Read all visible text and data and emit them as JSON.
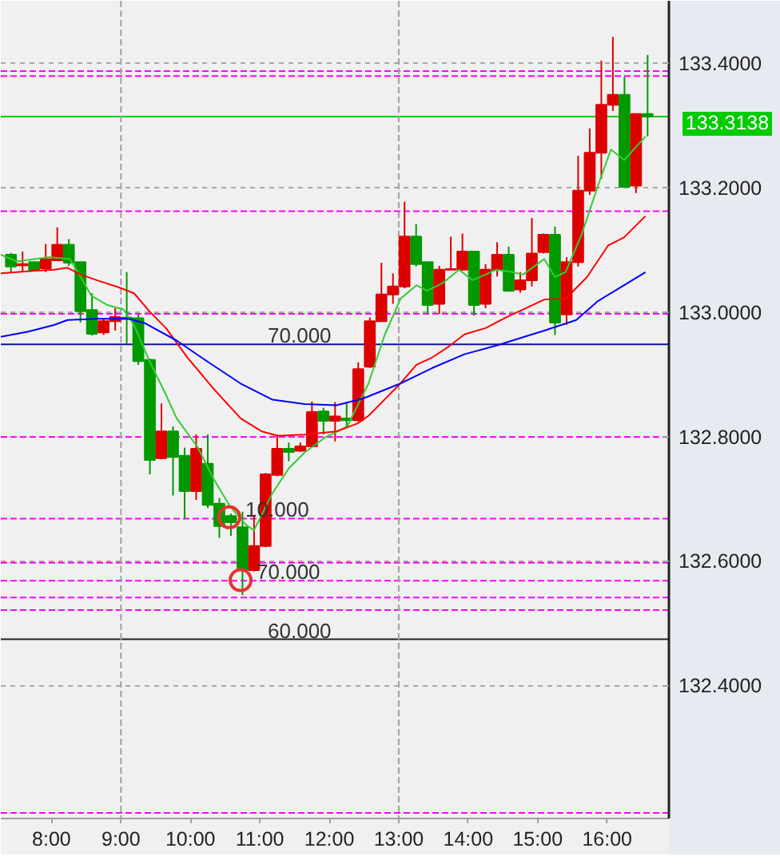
{
  "chart_data": {
    "type": "candlestick",
    "x": [
      7.4167,
      7.5833,
      7.75,
      7.9167,
      8.0833,
      8.25,
      8.4167,
      8.5833,
      8.75,
      8.9167,
      9.0833,
      9.25,
      9.4167,
      9.5833,
      9.75,
      9.9167,
      10.0833,
      10.25,
      10.4167,
      10.5833,
      10.75,
      10.9167,
      11.0833,
      11.25,
      11.4167,
      11.5833,
      11.75,
      11.9167,
      12.0833,
      12.25,
      12.4167,
      12.5833,
      12.75,
      12.9167,
      13.0833,
      13.25,
      13.4167,
      13.5833,
      13.75,
      13.9167,
      14.0833,
      14.25,
      14.4167,
      14.5833,
      14.75,
      14.9167,
      15.0833,
      15.25,
      15.4167,
      15.5833,
      15.75,
      15.9167,
      16.0833,
      16.25,
      16.4167,
      16.5833
    ],
    "ohlc": [
      [
        133.092,
        133.095,
        133.064,
        133.073
      ],
      [
        133.075,
        133.097,
        133.064,
        133.077
      ],
      [
        133.08,
        133.081,
        133.065,
        133.067
      ],
      [
        133.07,
        133.109,
        133.064,
        133.085
      ],
      [
        133.083,
        133.136,
        133.082,
        133.108
      ],
      [
        133.108,
        133.117,
        133.074,
        133.079
      ],
      [
        133.08,
        133.08,
        132.983,
        133.001
      ],
      [
        133.003,
        133.03,
        132.962,
        132.965
      ],
      [
        132.967,
        132.99,
        132.963,
        132.985
      ],
      [
        132.985,
        133.006,
        132.97,
        132.992
      ],
      [
        132.991,
        133.064,
        132.949,
        132.989
      ],
      [
        132.99,
        132.996,
        132.915,
        132.921
      ],
      [
        132.923,
        132.925,
        132.739,
        132.762
      ],
      [
        132.765,
        132.853,
        132.763,
        132.808
      ],
      [
        132.808,
        132.816,
        132.705,
        132.767
      ],
      [
        132.769,
        132.782,
        132.667,
        132.712
      ],
      [
        132.712,
        132.803,
        132.698,
        132.78
      ],
      [
        132.756,
        132.803,
        132.685,
        132.69
      ],
      [
        132.692,
        132.701,
        132.637,
        132.656
      ],
      [
        132.672,
        132.676,
        132.64,
        132.662
      ],
      [
        132.654,
        132.679,
        132.545,
        132.585
      ],
      [
        132.585,
        132.674,
        132.583,
        132.624
      ],
      [
        132.624,
        132.741,
        132.622,
        132.739
      ],
      [
        132.738,
        132.803,
        132.736,
        132.78
      ],
      [
        132.78,
        132.79,
        132.76,
        132.775
      ],
      [
        132.777,
        132.79,
        132.775,
        132.784
      ],
      [
        132.784,
        132.856,
        132.782,
        132.839
      ],
      [
        132.84,
        132.846,
        132.803,
        132.825
      ],
      [
        132.825,
        132.855,
        132.792,
        132.832
      ],
      [
        132.829,
        132.855,
        132.813,
        132.826
      ],
      [
        132.826,
        132.919,
        132.824,
        132.908
      ],
      [
        132.912,
        132.991,
        132.91,
        132.985
      ],
      [
        132.985,
        133.079,
        132.984,
        133.028
      ],
      [
        133.028,
        133.062,
        133.013,
        133.041
      ],
      [
        133.041,
        133.177,
        133.038,
        133.121
      ],
      [
        133.121,
        133.141,
        133.073,
        133.077
      ],
      [
        133.08,
        133.08,
        132.997,
        133.011
      ],
      [
        133.013,
        133.074,
        132.997,
        133.068
      ],
      [
        133.068,
        133.121,
        133.067,
        133.069
      ],
      [
        133.068,
        133.126,
        133.067,
        133.097
      ],
      [
        133.097,
        133.097,
        132.994,
        133.011
      ],
      [
        133.013,
        133.077,
        133.006,
        133.068
      ],
      [
        133.068,
        133.112,
        133.057,
        133.092
      ],
      [
        133.092,
        133.105,
        133.034,
        133.034
      ],
      [
        133.036,
        133.064,
        133.031,
        133.051
      ],
      [
        133.051,
        133.151,
        133.041,
        133.094
      ],
      [
        133.096,
        133.126,
        133.094,
        133.124
      ],
      [
        133.124,
        133.137,
        132.963,
        132.983
      ],
      [
        132.996,
        133.088,
        132.979,
        133.08
      ],
      [
        133.08,
        133.251,
        133.073,
        133.195
      ],
      [
        133.195,
        133.295,
        133.188,
        133.256
      ],
      [
        133.256,
        133.404,
        133.214,
        133.333
      ],
      [
        133.333,
        133.442,
        133.323,
        133.349
      ],
      [
        133.349,
        133.378,
        133.201,
        133.201
      ],
      [
        133.203,
        133.318,
        133.191,
        133.318
      ],
      [
        133.318,
        133.413,
        133.282,
        133.3138
      ]
    ],
    "colors": [
      "#009900",
      "#dd0000",
      "#009900",
      "#dd0000",
      "#dd0000",
      "#009900",
      "#009900",
      "#009900",
      "#dd0000",
      "#dd0000",
      "#009900",
      "#009900",
      "#009900",
      "#dd0000",
      "#009900",
      "#009900",
      "#dd0000",
      "#009900",
      "#009900",
      "#009900",
      "#009900",
      "#dd0000",
      "#dd0000",
      "#dd0000",
      "#009900",
      "#dd0000",
      "#dd0000",
      "#009900",
      "#dd0000",
      "#009900",
      "#dd0000",
      "#dd0000",
      "#dd0000",
      "#dd0000",
      "#dd0000",
      "#009900",
      "#009900",
      "#dd0000",
      "#dd0000",
      "#dd0000",
      "#009900",
      "#dd0000",
      "#dd0000",
      "#009900",
      "#dd0000",
      "#dd0000",
      "#dd0000",
      "#009900",
      "#dd0000",
      "#dd0000",
      "#dd0000",
      "#dd0000",
      "#dd0000",
      "#009900",
      "#dd0000",
      "#009900"
    ],
    "series": [
      {
        "type": "line",
        "color": "#33cc33",
        "x": [
          7.27,
          7.501,
          7.961,
          8.267,
          8.421,
          8.575,
          8.805,
          9.036,
          9.188,
          9.418,
          9.648,
          9.802,
          10.108,
          10.338,
          10.568,
          10.799,
          10.914,
          11.183,
          11.413,
          11.643,
          11.949,
          12.258,
          12.564,
          12.794,
          13.024,
          13.254,
          13.409,
          13.639,
          13.869,
          14.06,
          14.251,
          14.405,
          14.635,
          14.789,
          15.096,
          15.25,
          15.402,
          15.632,
          15.862,
          16.055,
          16.246,
          16.552
        ],
        "values": [
          133.092,
          133.081,
          133.088,
          133.085,
          133.056,
          133.026,
          133.011,
          133.004,
          132.979,
          132.919,
          132.867,
          132.829,
          132.782,
          132.731,
          132.688,
          132.658,
          132.649,
          132.709,
          132.748,
          132.774,
          132.799,
          132.816,
          132.885,
          132.962,
          133.021,
          133.043,
          133.034,
          133.047,
          133.068,
          133.051,
          133.06,
          133.068,
          133.064,
          133.06,
          133.085,
          133.056,
          133.064,
          133.124,
          133.201,
          133.261,
          133.244,
          133.282
        ]
      },
      {
        "type": "line",
        "color": "#ff0000",
        "x": [
          7.27,
          7.731,
          8.037,
          8.23,
          8.421,
          8.651,
          8.957,
          9.188,
          9.418,
          9.648,
          9.956,
          10.338,
          10.723,
          11.029,
          11.259,
          11.643,
          12.104,
          12.41,
          12.564,
          13.024,
          13.254,
          13.484,
          13.715,
          13.945,
          14.251,
          14.559,
          14.789,
          15.096,
          15.402,
          15.71,
          16.016,
          16.246,
          16.552
        ],
        "values": [
          133.062,
          133.066,
          133.068,
          133.071,
          133.06,
          133.051,
          133.04,
          133.03,
          133.0,
          132.974,
          132.927,
          132.876,
          132.829,
          132.808,
          132.801,
          132.803,
          132.808,
          132.821,
          132.833,
          132.885,
          132.915,
          132.927,
          132.944,
          132.964,
          132.974,
          132.992,
          133.004,
          133.02,
          133.021,
          133.056,
          133.107,
          133.12,
          133.154
        ]
      },
      {
        "type": "line",
        "color": "#0000ff",
        "x": [
          7.27,
          7.655,
          8.037,
          8.23,
          8.651,
          9.112,
          9.342,
          9.802,
          10.262,
          10.723,
          11.183,
          11.643,
          12.104,
          12.488,
          13.024,
          13.484,
          13.945,
          14.405,
          14.865,
          15.096,
          15.556,
          15.862,
          16.17,
          16.552
        ],
        "values": [
          132.96,
          132.968,
          132.979,
          132.987,
          132.989,
          132.989,
          132.982,
          132.954,
          132.919,
          132.885,
          132.859,
          132.852,
          132.85,
          132.861,
          132.885,
          132.91,
          132.932,
          132.946,
          132.962,
          132.97,
          132.987,
          133.017,
          133.038,
          133.064
        ]
      },
      {
        "type": "scatter",
        "color": "#e83030",
        "marker": "circle",
        "x": [
          10.561,
          10.723
        ],
        "values": [
          132.67,
          132.569
        ]
      }
    ],
    "xlim": [
      7.27,
      16.89
    ],
    "xticks": [
      {
        "value": 8,
        "label": "8:00"
      },
      {
        "value": 9,
        "label": "9:00"
      },
      {
        "value": 10,
        "label": "10:00"
      },
      {
        "value": 11,
        "label": "11:00"
      },
      {
        "value": 12,
        "label": "12:00"
      },
      {
        "value": 13,
        "label": "13:00"
      },
      {
        "value": 14,
        "label": "14:00"
      },
      {
        "value": 15,
        "label": "15:00"
      },
      {
        "value": 16,
        "label": "16:00"
      }
    ],
    "ylim": [
      132.186,
      133.5
    ],
    "yticks": [
      {
        "value": 132.4,
        "label": "132.4000"
      },
      {
        "value": 132.6,
        "label": "132.6000"
      },
      {
        "value": 132.8,
        "label": "132.8000"
      },
      {
        "value": 133.0,
        "label": "133.0000"
      },
      {
        "value": 133.2,
        "label": "133.2000"
      },
      {
        "value": 133.4,
        "label": "133.4000"
      }
    ],
    "grid": "y",
    "ref_lines": [
      {
        "axis": "y",
        "value": 133.387,
        "color": "#ff00ff",
        "line_style": "dashed"
      },
      {
        "axis": "y",
        "value": 133.379,
        "color": "#ff00ff",
        "line_style": "dashed"
      },
      {
        "axis": "y",
        "value": 133.3138,
        "color": "#00cc00",
        "line_style": "solid",
        "label": "133.3138"
      },
      {
        "axis": "y",
        "value": 133.162,
        "color": "#ff00ff",
        "line_style": "dashed"
      },
      {
        "axis": "y",
        "value": 132.997,
        "color": "#ff00ff",
        "line_style": "dashed"
      },
      {
        "axis": "y",
        "value": 132.948,
        "color": "#1010a0",
        "line_style": "solid"
      },
      {
        "axis": "y",
        "value": 132.799,
        "color": "#ff00ff",
        "line_style": "dashed"
      },
      {
        "axis": "y",
        "value": 132.668,
        "color": "#ff00ff",
        "line_style": "dashed"
      },
      {
        "axis": "y",
        "value": 132.597,
        "color": "#ff00ff",
        "line_style": "dashed"
      },
      {
        "axis": "y",
        "value": 132.568,
        "color": "#ff00ff",
        "line_style": "dashed"
      },
      {
        "axis": "y",
        "value": 132.541,
        "color": "#ff00ff",
        "line_style": "dashed"
      },
      {
        "axis": "y",
        "value": 132.521,
        "color": "#ff00ff",
        "line_style": "dashed"
      },
      {
        "axis": "y",
        "value": 132.474,
        "color": "#202020",
        "line_style": "solid"
      },
      {
        "axis": "y",
        "value": 132.195,
        "color": "#ff00ff",
        "line_style": "dashed"
      },
      {
        "axis": "x",
        "value": 9,
        "color": "#a0a0a0",
        "line_style": "dashed"
      },
      {
        "axis": "x",
        "value": 13,
        "color": "#a0a0a0",
        "line_style": "dashed"
      }
    ],
    "annotations": [
      {
        "text": "70.000",
        "x": 11.114,
        "y": 132.948
      },
      {
        "text": "10.000",
        "x": 10.792,
        "y": 132.668
      },
      {
        "text": "70.000",
        "x": 10.953,
        "y": 132.568
      },
      {
        "text": "60.000",
        "x": 11.114,
        "y": 132.474
      }
    ]
  }
}
